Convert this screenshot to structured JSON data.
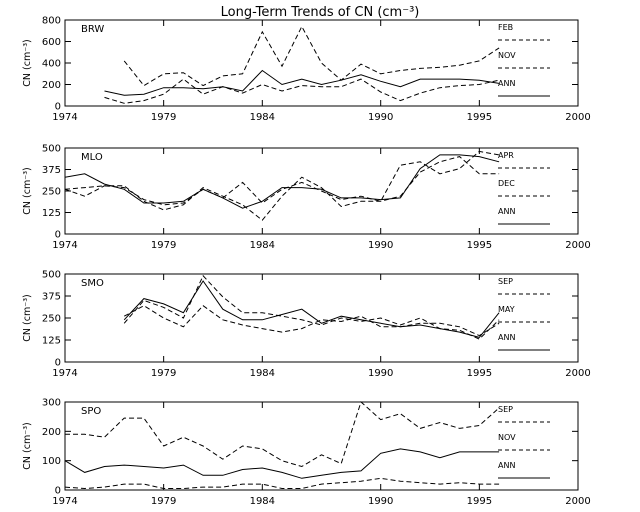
{
  "figure": {
    "title": "Long-Term Trends of CN (cm⁻³)"
  },
  "chart_data": [
    {
      "type": "line",
      "title": "BRW",
      "ylabel": "CN (cm⁻³)",
      "xlim": [
        1974,
        2000
      ],
      "ylim": [
        0,
        800
      ],
      "xticks": [
        1974,
        1979,
        1984,
        1990,
        1995,
        2000
      ],
      "yticks": [
        0,
        200,
        400,
        600,
        800
      ],
      "legend_position": "right",
      "series": [
        {
          "name": "FEB",
          "style": "dashed",
          "x": [
            1977,
            1978,
            1979,
            1980,
            1981,
            1982,
            1983,
            1984,
            1985,
            1986,
            1987,
            1988,
            1989,
            1990,
            1991,
            1992,
            1993,
            1994,
            1995,
            1996
          ],
          "values": [
            420,
            190,
            300,
            310,
            190,
            280,
            300,
            690,
            370,
            740,
            400,
            240,
            390,
            300,
            330,
            350,
            360,
            380,
            420,
            540
          ]
        },
        {
          "name": "NOV",
          "style": "dashed",
          "x": [
            1976,
            1977,
            1978,
            1979,
            1980,
            1981,
            1982,
            1983,
            1984,
            1985,
            1986,
            1987,
            1988,
            1989,
            1990,
            1991,
            1992,
            1993,
            1994,
            1995,
            1996
          ],
          "values": [
            80,
            25,
            50,
            110,
            250,
            110,
            180,
            120,
            200,
            140,
            190,
            180,
            180,
            250,
            130,
            50,
            120,
            170,
            190,
            200,
            240
          ]
        },
        {
          "name": "ANN",
          "style": "solid",
          "x": [
            1976,
            1977,
            1978,
            1979,
            1980,
            1981,
            1982,
            1983,
            1984,
            1985,
            1986,
            1987,
            1988,
            1989,
            1990,
            1991,
            1992,
            1993,
            1994,
            1995,
            1996
          ],
          "values": [
            140,
            100,
            110,
            170,
            170,
            160,
            180,
            140,
            330,
            200,
            250,
            200,
            240,
            290,
            230,
            180,
            250,
            250,
            250,
            240,
            210
          ]
        }
      ]
    },
    {
      "type": "line",
      "title": "MLO",
      "ylabel": "CN (cm⁻³)",
      "xlim": [
        1974,
        2000
      ],
      "ylim": [
        0,
        500
      ],
      "xticks": [
        1974,
        1979,
        1984,
        1990,
        1995,
        2000
      ],
      "yticks": [
        0,
        125,
        250,
        375,
        500
      ],
      "legend_position": "right",
      "series": [
        {
          "name": "APR",
          "style": "dashed",
          "x": [
            1974,
            1975,
            1976,
            1977,
            1978,
            1979,
            1980,
            1981,
            1982,
            1983,
            1984,
            1985,
            1986,
            1987,
            1988,
            1989,
            1990,
            1991,
            1992,
            1993,
            1994,
            1995,
            1996
          ],
          "values": [
            260,
            270,
            280,
            270,
            200,
            170,
            180,
            260,
            210,
            300,
            180,
            260,
            300,
            250,
            200,
            220,
            190,
            400,
            420,
            350,
            380,
            480,
            460
          ]
        },
        {
          "name": "DEC",
          "style": "dashed",
          "x": [
            1974,
            1975,
            1976,
            1977,
            1978,
            1979,
            1980,
            1981,
            1982,
            1983,
            1984,
            1985,
            1986,
            1987,
            1988,
            1989,
            1990,
            1991,
            1992,
            1993,
            1994,
            1995,
            1996
          ],
          "values": [
            260,
            220,
            280,
            280,
            190,
            140,
            170,
            270,
            220,
            170,
            80,
            220,
            330,
            270,
            160,
            190,
            190,
            220,
            360,
            420,
            450,
            350,
            350
          ]
        },
        {
          "name": "ANN",
          "style": "solid",
          "x": [
            1974,
            1975,
            1976,
            1977,
            1978,
            1979,
            1980,
            1981,
            1982,
            1983,
            1984,
            1985,
            1986,
            1987,
            1988,
            1989,
            1990,
            1991,
            1992,
            1993,
            1994,
            1995,
            1996
          ],
          "values": [
            330,
            350,
            290,
            260,
            180,
            180,
            190,
            260,
            210,
            150,
            190,
            270,
            270,
            260,
            210,
            210,
            200,
            210,
            380,
            460,
            460,
            450,
            420
          ]
        }
      ]
    },
    {
      "type": "line",
      "title": "SMO",
      "ylabel": "CN (cm⁻³)",
      "xlim": [
        1974,
        2000
      ],
      "ylim": [
        0,
        500
      ],
      "xticks": [
        1974,
        1979,
        1984,
        1990,
        1995,
        2000
      ],
      "yticks": [
        0,
        125,
        250,
        375,
        500
      ],
      "legend_position": "right",
      "series": [
        {
          "name": "SEP",
          "style": "dashed",
          "x": [
            1977,
            1978,
            1979,
            1980,
            1981,
            1982,
            1983,
            1984,
            1985,
            1986,
            1987,
            1988,
            1989,
            1990,
            1991,
            1992,
            1993,
            1994,
            1995,
            1996
          ],
          "values": [
            220,
            350,
            310,
            250,
            490,
            370,
            280,
            280,
            260,
            240,
            210,
            250,
            230,
            250,
            210,
            250,
            190,
            180,
            130,
            240
          ]
        },
        {
          "name": "MAY",
          "style": "dashed",
          "x": [
            1977,
            1978,
            1979,
            1980,
            1981,
            1982,
            1983,
            1984,
            1985,
            1986,
            1987,
            1988,
            1989,
            1990,
            1991,
            1992,
            1993,
            1994,
            1995,
            1996
          ],
          "values": [
            260,
            320,
            250,
            200,
            320,
            240,
            210,
            190,
            170,
            190,
            240,
            230,
            260,
            200,
            200,
            220,
            220,
            200,
            150,
            220
          ]
        },
        {
          "name": "ANN",
          "style": "solid",
          "x": [
            1977,
            1978,
            1979,
            1980,
            1981,
            1982,
            1983,
            1984,
            1985,
            1986,
            1987,
            1988,
            1989,
            1990,
            1991,
            1992,
            1993,
            1994,
            1995,
            1996
          ],
          "values": [
            240,
            360,
            330,
            280,
            460,
            300,
            240,
            240,
            270,
            300,
            220,
            260,
            240,
            220,
            200,
            210,
            190,
            170,
            140,
            280
          ]
        }
      ]
    },
    {
      "type": "line",
      "title": "SPO",
      "ylabel": "CN (cm⁻³)",
      "xlim": [
        1974,
        2000
      ],
      "ylim": [
        0,
        300
      ],
      "xticks": [
        1974,
        1979,
        1984,
        1990,
        1995,
        2000
      ],
      "yticks": [
        0,
        100,
        200,
        300
      ],
      "legend_position": "right",
      "series": [
        {
          "name": "SEP",
          "style": "dashed",
          "x": [
            1974,
            1975,
            1976,
            1977,
            1978,
            1979,
            1980,
            1981,
            1982,
            1983,
            1984,
            1985,
            1986,
            1987,
            1988,
            1989,
            1990,
            1991,
            1992,
            1993,
            1994,
            1995,
            1996
          ],
          "values": [
            190,
            190,
            180,
            245,
            245,
            150,
            180,
            150,
            105,
            150,
            140,
            100,
            80,
            120,
            90,
            300,
            240,
            260,
            210,
            230,
            210,
            220,
            280
          ]
        },
        {
          "name": "NOV",
          "style": "dashed",
          "x": [
            1974,
            1975,
            1976,
            1977,
            1978,
            1979,
            1980,
            1981,
            1982,
            1983,
            1984,
            1985,
            1986,
            1987,
            1988,
            1989,
            1990,
            1991,
            1992,
            1993,
            1994,
            1995,
            1996
          ],
          "values": [
            10,
            5,
            10,
            20,
            20,
            5,
            5,
            10,
            10,
            20,
            20,
            5,
            5,
            20,
            25,
            30,
            40,
            30,
            25,
            20,
            25,
            20,
            20
          ]
        },
        {
          "name": "ANN",
          "style": "solid",
          "x": [
            1974,
            1975,
            1976,
            1977,
            1978,
            1979,
            1980,
            1981,
            1982,
            1983,
            1984,
            1985,
            1986,
            1987,
            1988,
            1989,
            1990,
            1991,
            1992,
            1993,
            1994,
            1995,
            1996
          ],
          "values": [
            100,
            60,
            80,
            85,
            80,
            75,
            85,
            50,
            50,
            70,
            75,
            60,
            40,
            50,
            60,
            65,
            125,
            140,
            130,
            110,
            130,
            130,
            130
          ]
        }
      ]
    }
  ]
}
